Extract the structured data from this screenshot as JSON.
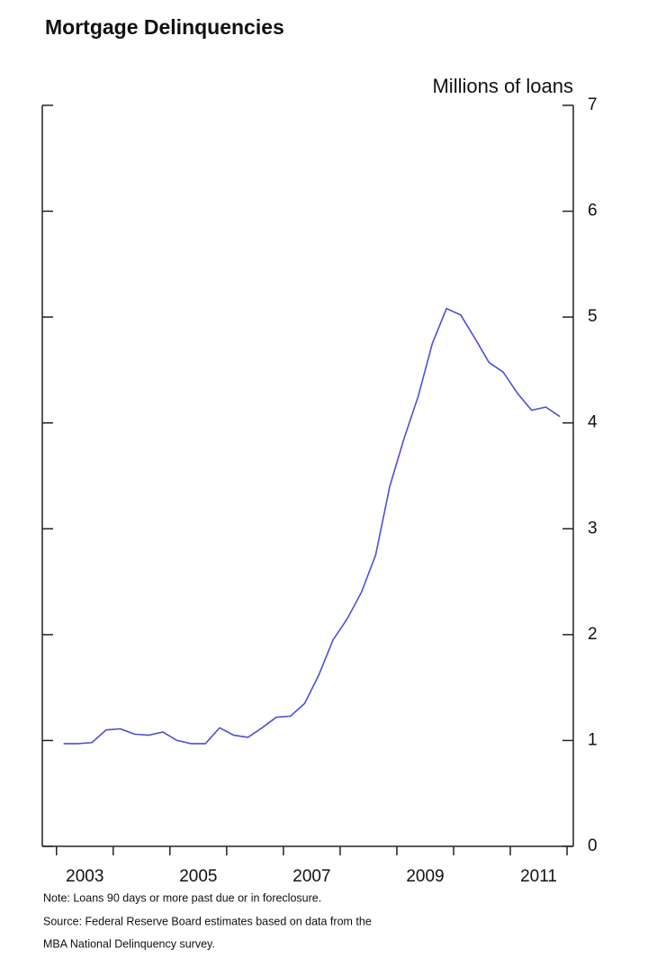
{
  "chart_data": {
    "type": "line",
    "title": "Mortgage Delinquencies",
    "y_axis_label": "Millions of loans",
    "notes": [
      "Note: Loans 90 days or more past due or in foreclosure.",
      "Source: Federal Reserve Board estimates based on data from the",
      "MBA National Delinquency survey."
    ],
    "x": [
      2003.125,
      2003.375,
      2003.625,
      2003.875,
      2004.125,
      2004.375,
      2004.625,
      2004.875,
      2005.125,
      2005.375,
      2005.625,
      2005.875,
      2006.125,
      2006.375,
      2006.625,
      2006.875,
      2007.125,
      2007.375,
      2007.625,
      2007.875,
      2008.125,
      2008.375,
      2008.625,
      2008.875,
      2009.125,
      2009.375,
      2009.625,
      2009.875,
      2010.125,
      2010.375,
      2010.625,
      2010.875,
      2011.125,
      2011.375,
      2011.625,
      2011.875
    ],
    "series": [
      {
        "name": "Mortgage delinquencies",
        "color": "#4f4fd6",
        "values": [
          0.97,
          0.97,
          0.98,
          1.1,
          1.11,
          1.06,
          1.05,
          1.08,
          1.0,
          0.97,
          0.97,
          1.12,
          1.05,
          1.03,
          1.12,
          1.22,
          1.23,
          1.35,
          1.62,
          1.95,
          2.15,
          2.4,
          2.75,
          3.4,
          3.85,
          4.25,
          4.75,
          5.08,
          5.02,
          4.8,
          4.57,
          4.48,
          4.28,
          4.12,
          4.15,
          4.06
        ]
      }
    ],
    "xlim": [
      2002.75,
      2012.11
    ],
    "xticks": [
      2003,
      2004,
      2005,
      2006,
      2007,
      2008,
      2009,
      2010,
      2011,
      2012
    ],
    "xtick_labels": [
      {
        "value": 2003.5,
        "label": "2003"
      },
      {
        "value": 2005.5,
        "label": "2005"
      },
      {
        "value": 2007.5,
        "label": "2007"
      },
      {
        "value": 2009.5,
        "label": "2009"
      },
      {
        "value": 2011.5,
        "label": "2011"
      }
    ],
    "ylim": [
      0,
      7
    ],
    "yticks": [
      0,
      1,
      2,
      3,
      4,
      5,
      6,
      7
    ]
  }
}
